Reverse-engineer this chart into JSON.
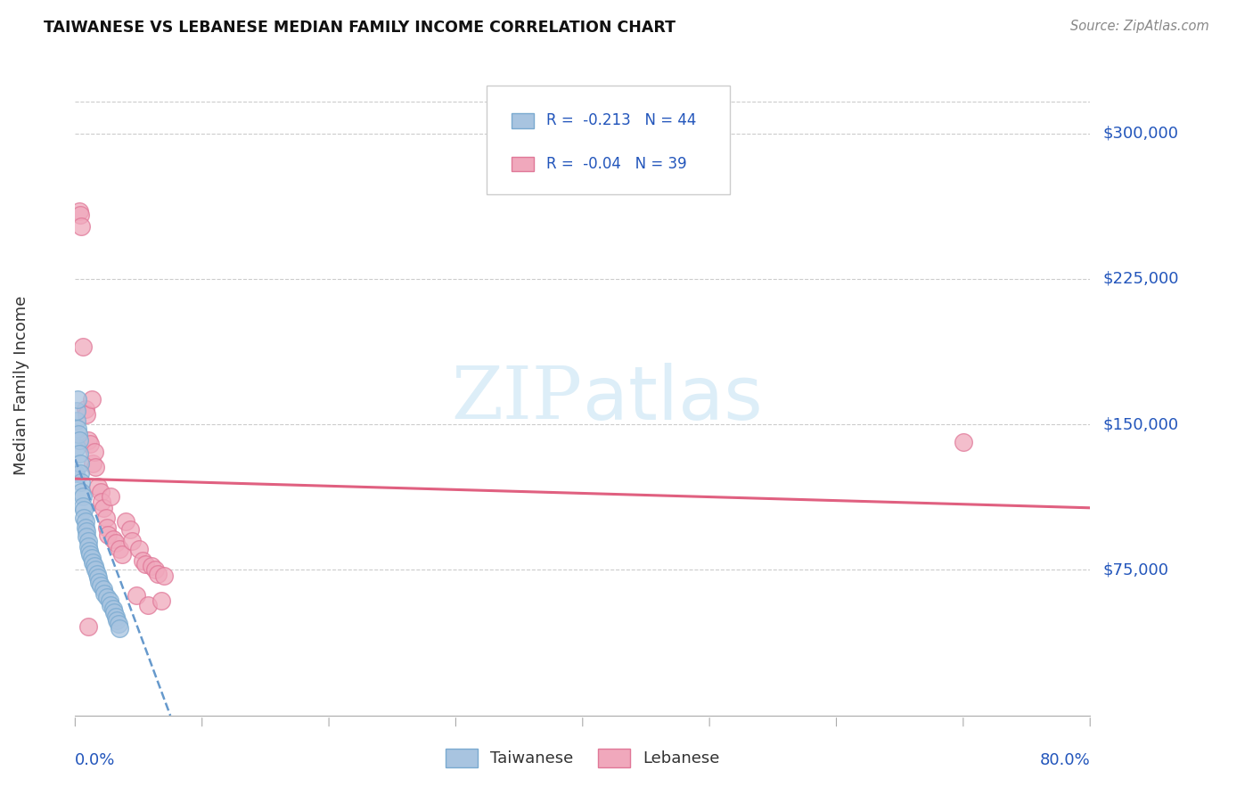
{
  "title": "TAIWANESE VS LEBANESE MEDIAN FAMILY INCOME CORRELATION CHART",
  "source": "Source: ZipAtlas.com",
  "ylabel": "Median Family Income",
  "y_ticks": [
    75000,
    150000,
    225000,
    300000
  ],
  "y_tick_labels": [
    "$75,000",
    "$150,000",
    "$225,000",
    "$300,000"
  ],
  "x_range": [
    0.0,
    0.8
  ],
  "y_range": [
    0,
    340000
  ],
  "taiwanese_color": "#a8c4e0",
  "taiwanese_edge": "#7aaad0",
  "lebanese_color": "#f0a8bc",
  "lebanese_edge": "#e07898",
  "trend_taiwanese_color": "#6699cc",
  "trend_lebanese_color": "#e06080",
  "taiwanese_R": -0.213,
  "taiwanese_N": 44,
  "lebanese_R": -0.04,
  "lebanese_N": 39,
  "watermark_color": "#ddeef8",
  "background_color": "#ffffff",
  "grid_color": "#cccccc",
  "tw_x": [
    0.0005,
    0.001,
    0.001,
    0.0015,
    0.002,
    0.002,
    0.0025,
    0.003,
    0.003,
    0.004,
    0.004,
    0.005,
    0.005,
    0.006,
    0.006,
    0.007,
    0.007,
    0.008,
    0.008,
    0.009,
    0.009,
    0.01,
    0.01,
    0.011,
    0.012,
    0.013,
    0.014,
    0.015,
    0.016,
    0.017,
    0.018,
    0.019,
    0.02,
    0.022,
    0.023,
    0.025,
    0.027,
    0.028,
    0.03,
    0.031,
    0.032,
    0.033,
    0.034,
    0.035
  ],
  "tw_y": [
    125000,
    152000,
    138000,
    157000,
    148000,
    163000,
    145000,
    142000,
    135000,
    130000,
    125000,
    120000,
    115000,
    113000,
    108000,
    106000,
    102000,
    100000,
    97000,
    95000,
    92000,
    90000,
    87000,
    85000,
    83000,
    81000,
    79000,
    77000,
    75000,
    73000,
    71000,
    69000,
    67000,
    65000,
    63000,
    61000,
    59000,
    57000,
    55000,
    53000,
    51000,
    49000,
    47000,
    45000
  ],
  "lb_x": [
    0.003,
    0.004,
    0.005,
    0.006,
    0.008,
    0.009,
    0.01,
    0.012,
    0.013,
    0.014,
    0.015,
    0.016,
    0.018,
    0.02,
    0.021,
    0.022,
    0.024,
    0.025,
    0.026,
    0.028,
    0.03,
    0.032,
    0.035,
    0.037,
    0.04,
    0.043,
    0.045,
    0.048,
    0.05,
    0.053,
    0.055,
    0.057,
    0.06,
    0.063,
    0.065,
    0.068,
    0.07,
    0.7,
    0.01
  ],
  "lb_y": [
    260000,
    258000,
    252000,
    190000,
    158000,
    155000,
    142000,
    140000,
    163000,
    130000,
    136000,
    128000,
    118000,
    115000,
    110000,
    107000,
    102000,
    97000,
    93000,
    113000,
    91000,
    89000,
    86000,
    83000,
    100000,
    96000,
    90000,
    62000,
    86000,
    80000,
    78000,
    57000,
    77000,
    75000,
    73000,
    59000,
    72000,
    141000,
    46000
  ]
}
